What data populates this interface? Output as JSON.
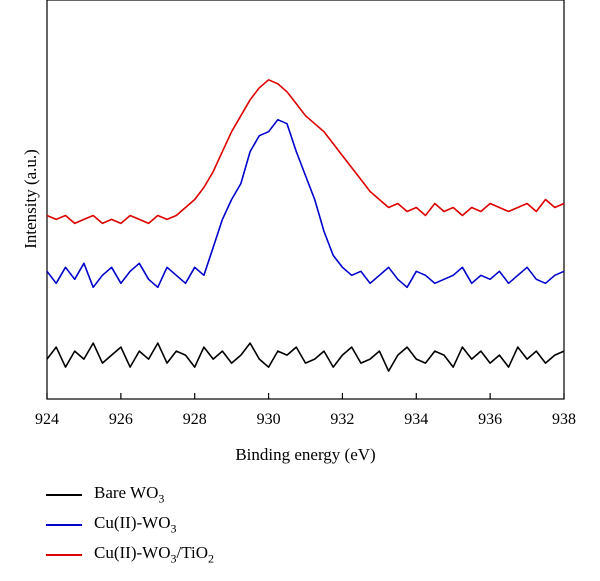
{
  "chart_data": {
    "type": "line",
    "title": "",
    "xlabel": "Binding energy (eV)",
    "ylabel": "Intensity (a.u.)",
    "xlim": [
      924,
      938
    ],
    "ylim": [
      0,
      1
    ],
    "x_ticks": [
      "924",
      "926",
      "928",
      "930",
      "932",
      "934",
      "936",
      "938"
    ],
    "x_tick_values": [
      924,
      926,
      928,
      930,
      932,
      934,
      936,
      938
    ],
    "grid": false,
    "legend_position": "bottom-left",
    "series": [
      {
        "name": "Bare WO3",
        "color": "#000000",
        "x": [
          924.0,
          924.25,
          924.5,
          924.75,
          925.0,
          925.25,
          925.5,
          925.75,
          926.0,
          926.25,
          926.5,
          926.75,
          927.0,
          927.25,
          927.5,
          927.75,
          928.0,
          928.25,
          928.5,
          928.75,
          929.0,
          929.25,
          929.5,
          929.75,
          930.0,
          930.25,
          930.5,
          930.75,
          931.0,
          931.25,
          931.5,
          931.75,
          932.0,
          932.25,
          932.5,
          932.75,
          933.0,
          933.25,
          933.5,
          933.75,
          934.0,
          934.25,
          934.5,
          934.75,
          935.0,
          935.25,
          935.5,
          935.75,
          936.0,
          936.25,
          936.5,
          936.75,
          937.0,
          937.25,
          937.5,
          937.75,
          938.0
        ],
        "values": [
          0.1,
          0.13,
          0.08,
          0.12,
          0.1,
          0.14,
          0.09,
          0.11,
          0.13,
          0.08,
          0.12,
          0.1,
          0.14,
          0.09,
          0.12,
          0.11,
          0.08,
          0.13,
          0.1,
          0.12,
          0.09,
          0.11,
          0.14,
          0.1,
          0.08,
          0.12,
          0.11,
          0.13,
          0.09,
          0.1,
          0.12,
          0.08,
          0.11,
          0.13,
          0.09,
          0.1,
          0.12,
          0.07,
          0.11,
          0.13,
          0.1,
          0.09,
          0.12,
          0.11,
          0.08,
          0.13,
          0.1,
          0.12,
          0.09,
          0.11,
          0.08,
          0.13,
          0.1,
          0.12,
          0.09,
          0.11,
          0.12
        ]
      },
      {
        "name": "Cu(II)-WO3",
        "color": "#0000cc",
        "x": [
          924.0,
          924.25,
          924.5,
          924.75,
          925.0,
          925.25,
          925.5,
          925.75,
          926.0,
          926.25,
          926.5,
          926.75,
          927.0,
          927.25,
          927.5,
          927.75,
          928.0,
          928.25,
          928.5,
          928.75,
          929.0,
          929.25,
          929.5,
          929.75,
          930.0,
          930.25,
          930.5,
          930.75,
          931.0,
          931.25,
          931.5,
          931.75,
          932.0,
          932.25,
          932.5,
          932.75,
          933.0,
          933.25,
          933.5,
          933.75,
          934.0,
          934.25,
          934.5,
          934.75,
          935.0,
          935.25,
          935.5,
          935.75,
          936.0,
          936.25,
          936.5,
          936.75,
          937.0,
          937.25,
          937.5,
          937.75,
          938.0
        ],
        "values": [
          0.32,
          0.29,
          0.33,
          0.3,
          0.34,
          0.28,
          0.31,
          0.33,
          0.29,
          0.32,
          0.34,
          0.3,
          0.28,
          0.33,
          0.31,
          0.29,
          0.33,
          0.31,
          0.38,
          0.45,
          0.5,
          0.54,
          0.62,
          0.66,
          0.67,
          0.7,
          0.69,
          0.62,
          0.56,
          0.5,
          0.42,
          0.36,
          0.33,
          0.31,
          0.32,
          0.29,
          0.31,
          0.33,
          0.3,
          0.28,
          0.32,
          0.31,
          0.29,
          0.3,
          0.31,
          0.33,
          0.29,
          0.31,
          0.3,
          0.32,
          0.29,
          0.31,
          0.33,
          0.3,
          0.29,
          0.31,
          0.32
        ]
      },
      {
        "name": "Cu(II)-WO3/TiO2",
        "color": "#dd0000",
        "x": [
          924.0,
          924.25,
          924.5,
          924.75,
          925.0,
          925.25,
          925.5,
          925.75,
          926.0,
          926.25,
          926.5,
          926.75,
          927.0,
          927.25,
          927.5,
          927.75,
          928.0,
          928.25,
          928.5,
          928.75,
          929.0,
          929.25,
          929.5,
          929.75,
          930.0,
          930.25,
          930.5,
          930.75,
          931.0,
          931.25,
          931.5,
          931.75,
          932.0,
          932.25,
          932.5,
          932.75,
          933.0,
          933.25,
          933.5,
          933.75,
          934.0,
          934.25,
          934.5,
          934.75,
          935.0,
          935.25,
          935.5,
          935.75,
          936.0,
          936.25,
          936.5,
          936.75,
          937.0,
          937.25,
          937.5,
          937.75,
          938.0
        ],
        "values": [
          0.46,
          0.45,
          0.46,
          0.44,
          0.45,
          0.46,
          0.44,
          0.45,
          0.44,
          0.46,
          0.45,
          0.44,
          0.46,
          0.45,
          0.46,
          0.48,
          0.5,
          0.53,
          0.57,
          0.62,
          0.67,
          0.71,
          0.75,
          0.78,
          0.8,
          0.79,
          0.77,
          0.74,
          0.71,
          0.69,
          0.67,
          0.64,
          0.61,
          0.58,
          0.55,
          0.52,
          0.5,
          0.48,
          0.49,
          0.47,
          0.48,
          0.46,
          0.49,
          0.47,
          0.48,
          0.46,
          0.48,
          0.47,
          0.49,
          0.48,
          0.47,
          0.48,
          0.49,
          0.47,
          0.5,
          0.48,
          0.49
        ]
      }
    ]
  }
}
